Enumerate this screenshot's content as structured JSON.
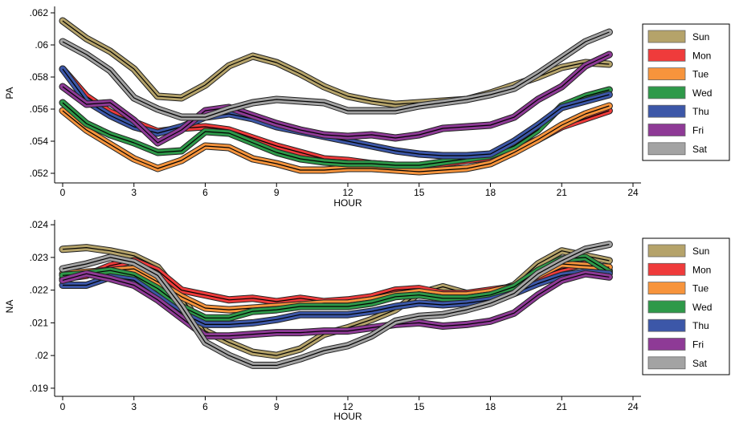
{
  "chart_data": [
    {
      "type": "line",
      "ylabel": "PA",
      "xlabel": "HOUR",
      "x": [
        0,
        1,
        2,
        3,
        4,
        5,
        6,
        7,
        8,
        9,
        10,
        11,
        12,
        13,
        14,
        15,
        16,
        17,
        18,
        19,
        20,
        21,
        22,
        23
      ],
      "xticks": [
        0,
        3,
        6,
        9,
        12,
        15,
        18,
        21,
        24
      ],
      "xticklabels": [
        "0",
        "3",
        "6",
        "9",
        "12",
        "15",
        "18",
        "21",
        "24"
      ],
      "xlim": [
        0,
        24
      ],
      "yticks": [
        0.052,
        0.054,
        0.056,
        0.058,
        0.06,
        0.062
      ],
      "yticklabels": [
        ".052",
        ".054",
        ".056",
        ".058",
        ".06",
        ".062"
      ],
      "ylim": [
        0.0516,
        0.0624
      ],
      "legend_position": "right",
      "series": [
        {
          "name": "Sun",
          "color": "#b5a36a",
          "values": [
            0.0615,
            0.0604,
            0.0596,
            0.0585,
            0.0568,
            0.0567,
            0.0575,
            0.0587,
            0.0593,
            0.0589,
            0.0582,
            0.0574,
            0.0568,
            0.0565,
            0.0563,
            0.0564,
            0.0565,
            0.0566,
            0.057,
            0.0575,
            0.058,
            0.0586,
            0.0589,
            0.0588
          ]
        },
        {
          "name": "Mon",
          "color": "#ef3b3b",
          "values": [
            0.0585,
            0.0568,
            0.0558,
            0.0552,
            0.0546,
            0.0548,
            0.0549,
            0.0547,
            0.0542,
            0.0537,
            0.0533,
            0.0529,
            0.0528,
            0.0526,
            0.0525,
            0.0525,
            0.0526,
            0.0528,
            0.053,
            0.0534,
            0.0541,
            0.0549,
            0.0554,
            0.0559
          ]
        },
        {
          "name": "Tue",
          "color": "#f7943c",
          "values": [
            0.0559,
            0.0547,
            0.0538,
            0.0529,
            0.0523,
            0.0528,
            0.0537,
            0.0536,
            0.0529,
            0.0526,
            0.0522,
            0.0522,
            0.0523,
            0.0523,
            0.0522,
            0.0521,
            0.0522,
            0.0523,
            0.0526,
            0.0533,
            0.0541,
            0.055,
            0.0557,
            0.0562
          ]
        },
        {
          "name": "Wed",
          "color": "#2e9949",
          "values": [
            0.0564,
            0.0551,
            0.0544,
            0.0539,
            0.0533,
            0.0534,
            0.0546,
            0.0545,
            0.0539,
            0.0533,
            0.0529,
            0.0527,
            0.0526,
            0.0526,
            0.0525,
            0.0525,
            0.0527,
            0.0529,
            0.0531,
            0.0537,
            0.0547,
            0.0562,
            0.0568,
            0.0572
          ]
        },
        {
          "name": "Thu",
          "color": "#3c57a8",
          "values": [
            0.0585,
            0.0565,
            0.0556,
            0.0549,
            0.0545,
            0.0549,
            0.0555,
            0.0557,
            0.0554,
            0.0549,
            0.0546,
            0.0543,
            0.054,
            0.0537,
            0.0534,
            0.0532,
            0.0531,
            0.0531,
            0.0532,
            0.054,
            0.055,
            0.0561,
            0.0565,
            0.0569
          ]
        },
        {
          "name": "Fri",
          "color": "#8e3a96",
          "values": [
            0.0574,
            0.0563,
            0.0564,
            0.0553,
            0.0539,
            0.0547,
            0.0559,
            0.0561,
            0.0556,
            0.0551,
            0.0547,
            0.0544,
            0.0543,
            0.0544,
            0.0542,
            0.0544,
            0.0548,
            0.0549,
            0.055,
            0.0555,
            0.0566,
            0.0574,
            0.0587,
            0.0594
          ]
        },
        {
          "name": "Sat",
          "color": "#a3a3a3",
          "values": [
            0.0602,
            0.0594,
            0.0584,
            0.0567,
            0.056,
            0.0555,
            0.0555,
            0.056,
            0.0564,
            0.0566,
            0.0565,
            0.0564,
            0.0559,
            0.0559,
            0.0559,
            0.0562,
            0.0564,
            0.0566,
            0.0569,
            0.0573,
            0.0582,
            0.0592,
            0.0602,
            0.0608
          ]
        }
      ]
    },
    {
      "type": "line",
      "ylabel": "NA",
      "xlabel": "HOUR",
      "x": [
        0,
        1,
        2,
        3,
        4,
        5,
        6,
        7,
        8,
        9,
        10,
        11,
        12,
        13,
        14,
        15,
        16,
        17,
        18,
        19,
        20,
        21,
        22,
        23
      ],
      "xticks": [
        0,
        3,
        6,
        9,
        12,
        15,
        18,
        21,
        24
      ],
      "xticklabels": [
        "0",
        "3",
        "6",
        "9",
        "12",
        "15",
        "18",
        "21",
        "24"
      ],
      "xlim": [
        0,
        24
      ],
      "yticks": [
        0.019,
        0.02,
        0.021,
        0.022,
        0.023,
        0.024
      ],
      "yticklabels": [
        ".019",
        ".02",
        ".021",
        ".022",
        ".023",
        ".024"
      ],
      "ylim": [
        0.01885,
        0.02415
      ],
      "legend_position": "right",
      "series": [
        {
          "name": "Sun",
          "color": "#b5a36a",
          "values": [
            0.02325,
            0.0233,
            0.0232,
            0.02305,
            0.0227,
            0.0218,
            0.02075,
            0.0204,
            0.0201,
            0.02,
            0.0202,
            0.02065,
            0.02085,
            0.0211,
            0.0214,
            0.0219,
            0.0221,
            0.0219,
            0.0219,
            0.02215,
            0.0228,
            0.0232,
            0.02305,
            0.0229
          ]
        },
        {
          "name": "Mon",
          "color": "#ef3b3b",
          "values": [
            0.02235,
            0.02245,
            0.02275,
            0.0229,
            0.0226,
            0.022,
            0.02185,
            0.0217,
            0.02175,
            0.02165,
            0.02175,
            0.02165,
            0.0217,
            0.0218,
            0.022,
            0.02205,
            0.0219,
            0.0219,
            0.022,
            0.0221,
            0.0224,
            0.02265,
            0.0228,
            0.0226
          ]
        },
        {
          "name": "Tue",
          "color": "#f7943c",
          "values": [
            0.0225,
            0.02255,
            0.0226,
            0.02265,
            0.02225,
            0.0218,
            0.02145,
            0.0214,
            0.02145,
            0.0215,
            0.02155,
            0.0216,
            0.0216,
            0.0217,
            0.02185,
            0.02195,
            0.02185,
            0.02185,
            0.02195,
            0.0221,
            0.02245,
            0.0228,
            0.02275,
            0.0227
          ]
        },
        {
          "name": "Wed",
          "color": "#2e9949",
          "values": [
            0.02245,
            0.0225,
            0.0226,
            0.02245,
            0.02205,
            0.0215,
            0.02115,
            0.02115,
            0.02135,
            0.0214,
            0.0215,
            0.0215,
            0.0215,
            0.0216,
            0.0218,
            0.02185,
            0.02175,
            0.02175,
            0.02185,
            0.0221,
            0.0226,
            0.02295,
            0.023,
            0.02255
          ]
        },
        {
          "name": "Thu",
          "color": "#3c57a8",
          "values": [
            0.02215,
            0.02215,
            0.0224,
            0.0223,
            0.0218,
            0.0213,
            0.02095,
            0.02095,
            0.021,
            0.0211,
            0.02125,
            0.02125,
            0.02125,
            0.02135,
            0.0215,
            0.0216,
            0.02155,
            0.0216,
            0.0217,
            0.0219,
            0.0222,
            0.02245,
            0.02255,
            0.0225
          ]
        },
        {
          "name": "Fri",
          "color": "#8e3a96",
          "values": [
            0.0223,
            0.0225,
            0.02235,
            0.02215,
            0.0217,
            0.02115,
            0.0206,
            0.0206,
            0.02065,
            0.0207,
            0.0207,
            0.02075,
            0.02075,
            0.02085,
            0.02095,
            0.021,
            0.0209,
            0.02095,
            0.02105,
            0.0213,
            0.02185,
            0.0223,
            0.0225,
            0.0224
          ]
        },
        {
          "name": "Sat",
          "color": "#a3a3a3",
          "values": [
            0.02265,
            0.0228,
            0.023,
            0.02285,
            0.02245,
            0.0215,
            0.0204,
            0.02,
            0.0197,
            0.0197,
            0.0199,
            0.02015,
            0.0203,
            0.0206,
            0.02105,
            0.0212,
            0.02125,
            0.0214,
            0.0216,
            0.0219,
            0.0225,
            0.0229,
            0.02325,
            0.0234
          ]
        }
      ]
    }
  ]
}
